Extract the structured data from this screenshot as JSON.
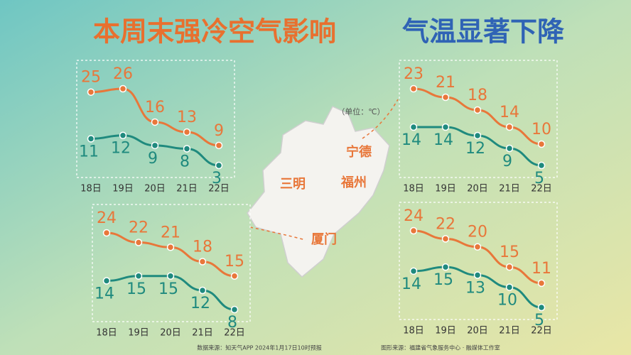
{
  "title_part1": "本周末强冷空气影响",
  "title_part2": "气温显著下降",
  "unit": "（单位：℃）",
  "map_labels": [
    "宁德",
    "三明",
    "福州",
    "厦门"
  ],
  "footer_left": "数据来源：知天气APP 2024年1月17日10时预报",
  "footer_right": "图形来源：福建省气象服务中心 · 融媒体工作室",
  "chart_data": [
    {
      "type": "line",
      "categories": [
        "18日",
        "19日",
        "20日",
        "21日",
        "22日"
      ],
      "series": [
        {
          "color": "#e8773a",
          "values": [
            25,
            26,
            16,
            13,
            9
          ]
        },
        {
          "color": "#1f8a7e",
          "values": [
            11,
            12,
            9,
            8,
            3
          ]
        }
      ]
    },
    {
      "type": "line",
      "categories": [
        "18日",
        "19日",
        "20日",
        "21日",
        "22日"
      ],
      "series": [
        {
          "color": "#e8773a",
          "values": [
            23,
            21,
            18,
            14,
            10
          ]
        },
        {
          "color": "#1f8a7e",
          "values": [
            14,
            14,
            12,
            9,
            5
          ]
        }
      ]
    },
    {
      "type": "line",
      "categories": [
        "18日",
        "19日",
        "20日",
        "21日",
        "22日"
      ],
      "series": [
        {
          "color": "#e8773a",
          "values": [
            24,
            22,
            21,
            18,
            15
          ]
        },
        {
          "color": "#1f8a7e",
          "values": [
            14,
            15,
            15,
            12,
            8
          ]
        }
      ]
    },
    {
      "type": "line",
      "categories": [
        "18日",
        "19日",
        "20日",
        "21日",
        "22日"
      ],
      "series": [
        {
          "color": "#e8773a",
          "values": [
            24,
            22,
            20,
            15,
            11
          ]
        },
        {
          "color": "#1f8a7e",
          "values": [
            14,
            15,
            13,
            10,
            5
          ]
        }
      ]
    }
  ]
}
